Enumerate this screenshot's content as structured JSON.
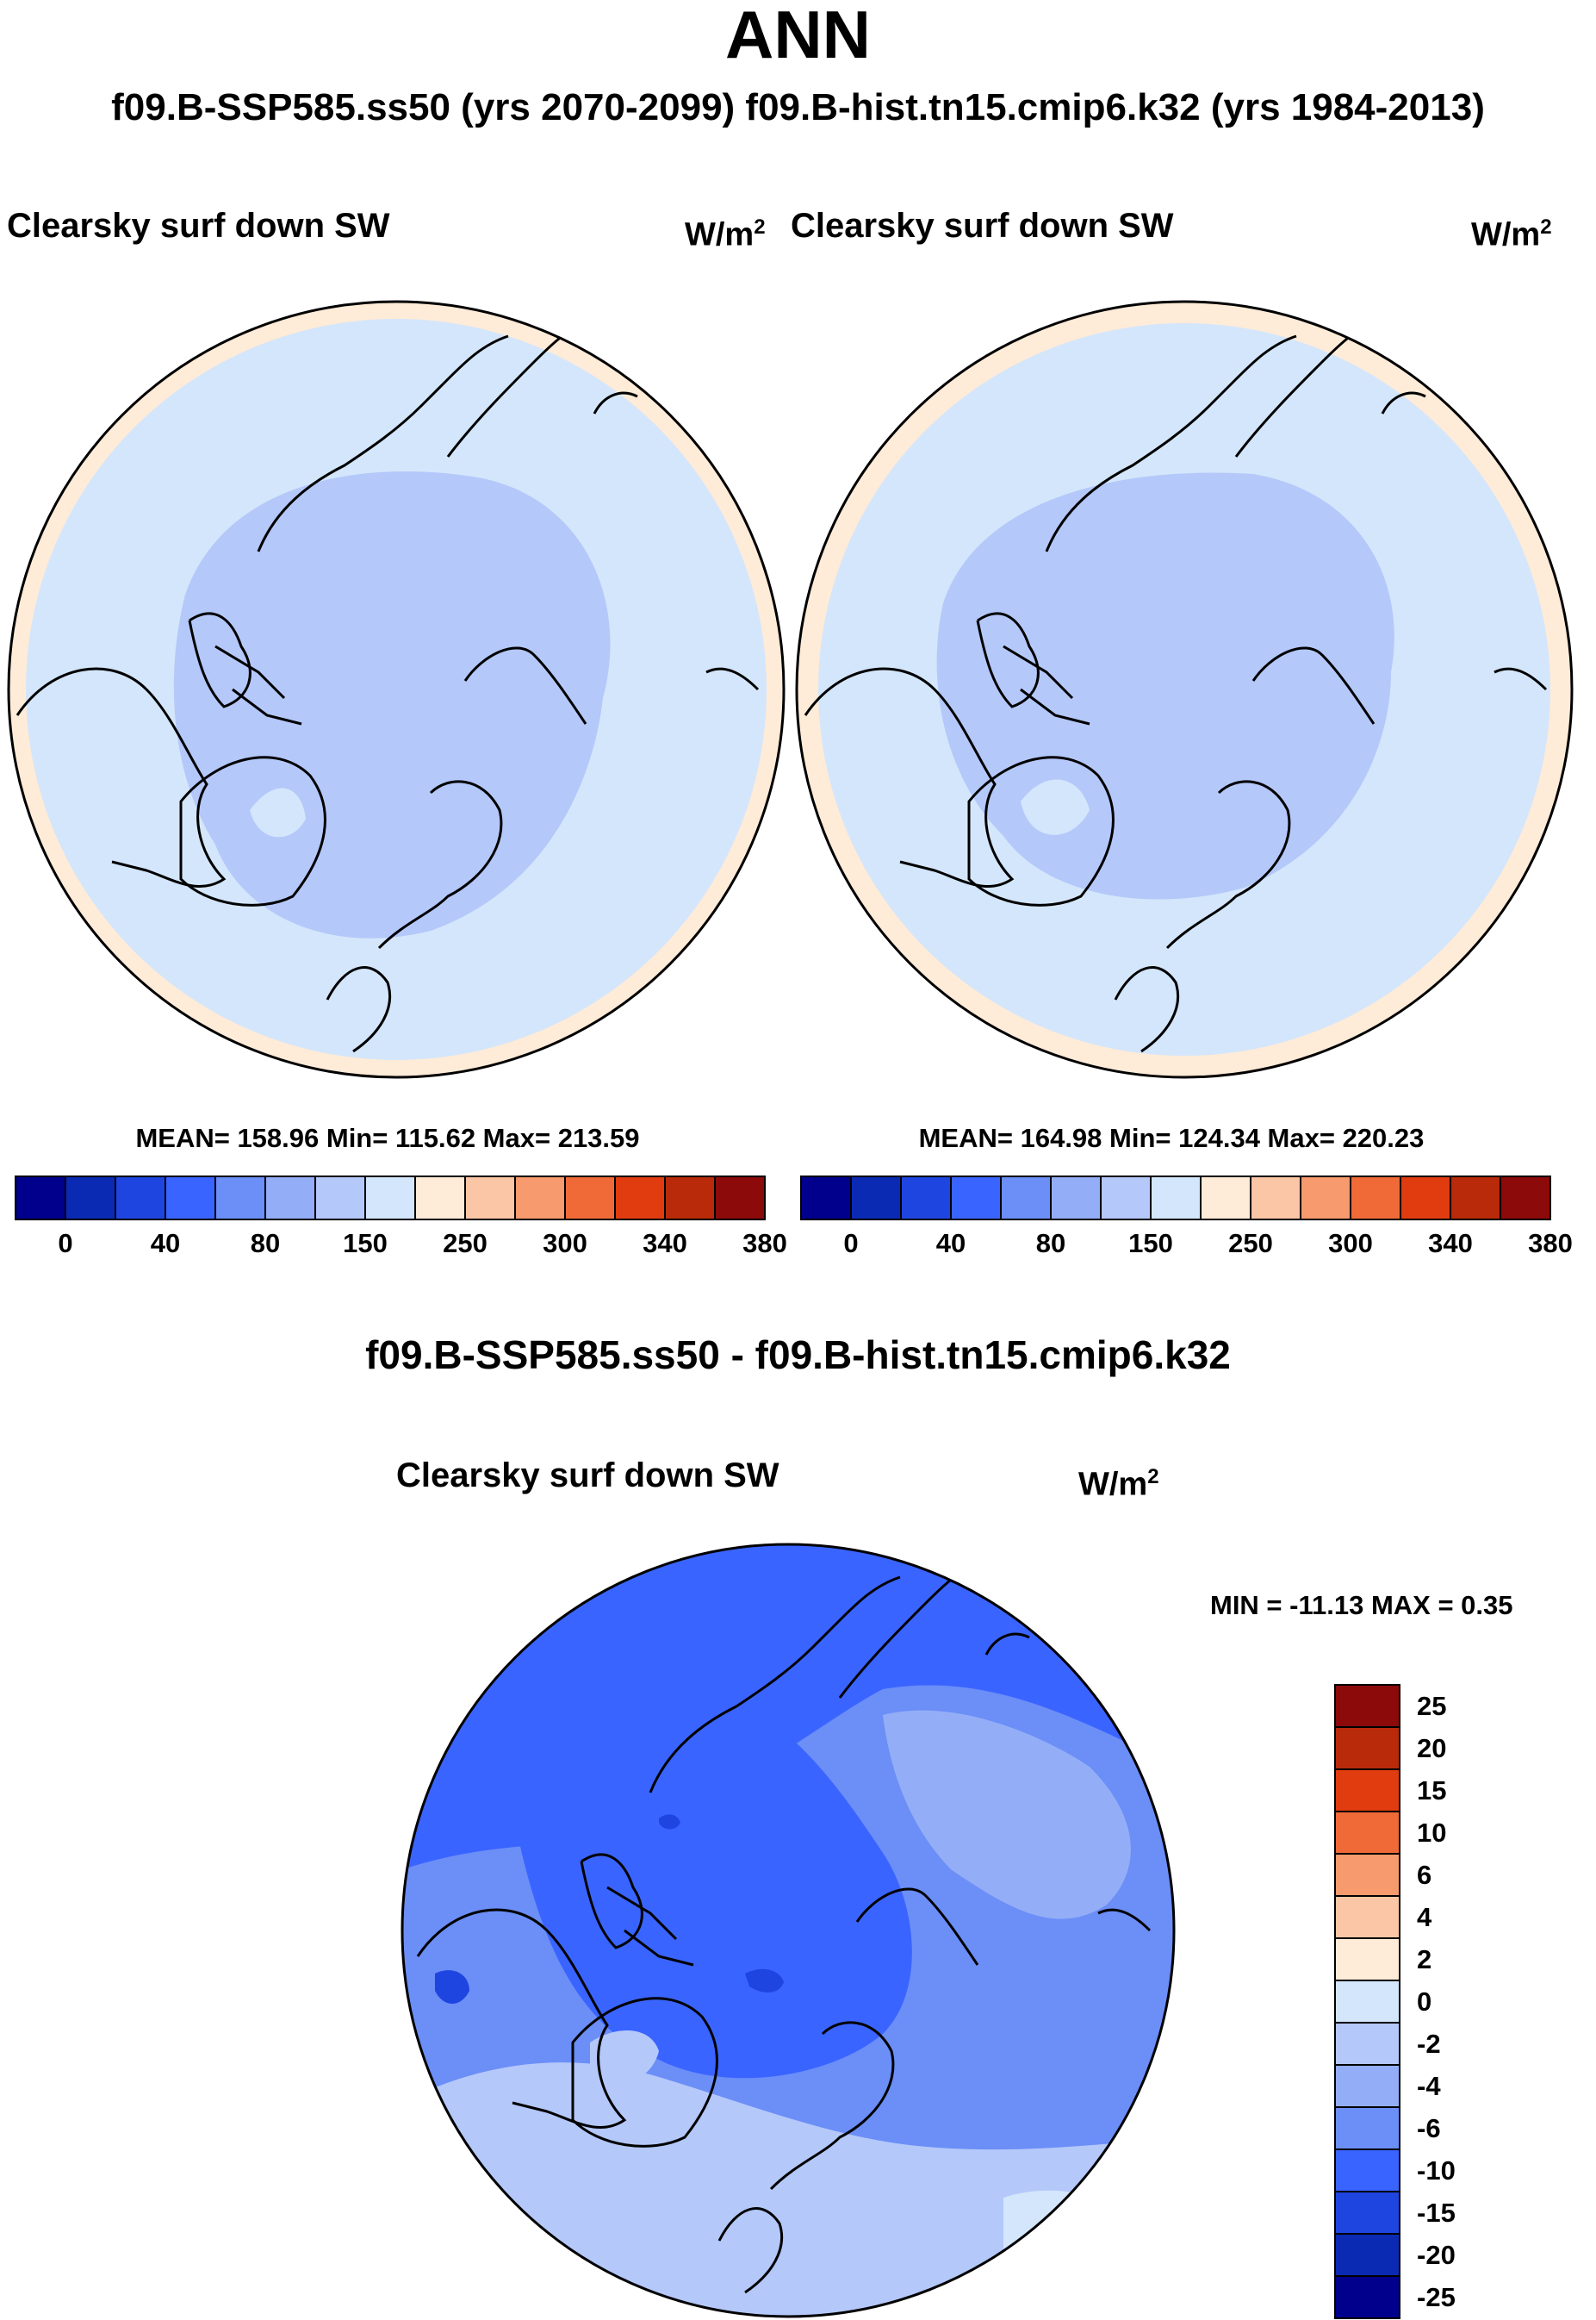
{
  "page": {
    "title": "ANN",
    "subtitle": "f09.B-SSP585.ss50 (yrs 2070-2099)  f09.B-hist.tn15.cmip6.k32 (yrs 1984-2013)",
    "diff_title": "f09.B-SSP585.ss50 - f09.B-hist.tn15.cmip6.k32"
  },
  "panels": [
    {
      "variable": "Clearsky surf down SW",
      "units": "W/m",
      "units_exp": "2",
      "stats": "MEAN= 158.96  Min= 115.62  Max= 213.59"
    },
    {
      "variable": "Clearsky surf down SW",
      "units": "W/m",
      "units_exp": "2",
      "stats": "MEAN= 164.98  Min= 124.34  Max= 220.23"
    }
  ],
  "diff_panel": {
    "variable": "Clearsky surf down SW",
    "units": "W/m",
    "units_exp": "2",
    "stats": "MIN = -11.13 MAX =   0.35"
  },
  "colorbar_abs": {
    "tick_labels": [
      "0",
      "40",
      "80",
      "150",
      "250",
      "300",
      "340",
      "380"
    ],
    "colors": [
      "#00008c",
      "#0a2ab4",
      "#1f45e0",
      "#3a64ff",
      "#6b8ef7",
      "#93aef7",
      "#b4c8fa",
      "#d4e6fb",
      "#feebd8",
      "#fbc6a5",
      "#f79a6d",
      "#f06a38",
      "#e03c0f",
      "#b82a0a",
      "#8c0a0a"
    ]
  },
  "colorbar_diff": {
    "tick_labels": [
      "25",
      "20",
      "15",
      "10",
      "6",
      "4",
      "2",
      "0",
      "-2",
      "-4",
      "-6",
      "-10",
      "-15",
      "-20",
      "-25"
    ],
    "colors": [
      "#8c0a0a",
      "#b82a0a",
      "#e03c0f",
      "#f06a38",
      "#f79a6d",
      "#fbc6a5",
      "#feebd8",
      "#d4e6fb",
      "#b4c8fa",
      "#93aef7",
      "#6b8ef7",
      "#3a64ff",
      "#1f45e0",
      "#0a2ab4",
      "#00008c"
    ]
  }
}
